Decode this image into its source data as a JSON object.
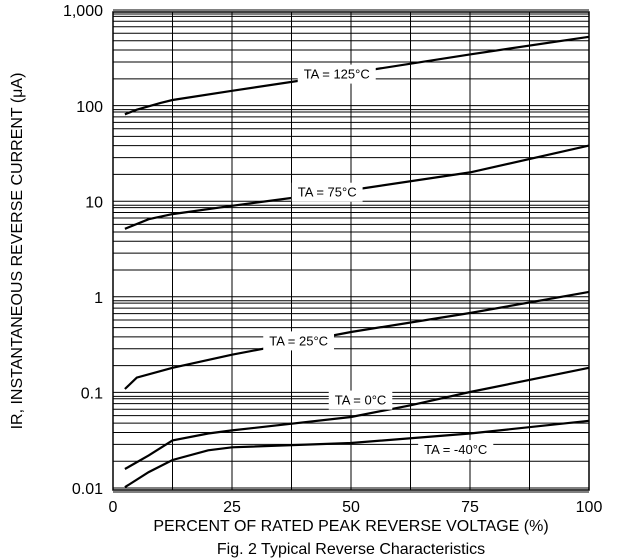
{
  "chart_data": {
    "type": "line",
    "caption": "Fig. 2  Typical Reverse Characteristics",
    "xlabel": "PERCENT OF RATED PEAK REVERSE VOLTAGE (%)",
    "ylabel": "IR, INSTANTANEOUS REVERSE CURRENT (μA)",
    "xlim": [
      0,
      100
    ],
    "xticks": [
      0,
      25,
      50,
      75,
      100
    ],
    "ylim": [
      0.01,
      1000
    ],
    "ylog": true,
    "yticks": [
      {
        "value": 0.01,
        "label": "0.01"
      },
      {
        "value": 0.1,
        "label": "0.1"
      },
      1,
      10,
      100,
      {
        "value": 1000,
        "label": "1,000"
      }
    ],
    "grid": true,
    "series": [
      {
        "name": "TA = 125°C",
        "color": "#000000",
        "x": [
          2.5,
          5,
          10,
          12.5,
          25,
          50,
          75,
          100
        ],
        "values": [
          85,
          95,
          112,
          120,
          150,
          230,
          360,
          550
        ]
      },
      {
        "name": "TA = 75°C",
        "color": "#000000",
        "x": [
          2.5,
          7.5,
          12.5,
          25,
          50,
          75,
          100
        ],
        "values": [
          5.4,
          6.8,
          7.7,
          9.4,
          13.7,
          21,
          40
        ]
      },
      {
        "name": "TA = 25°C",
        "color": "#000000",
        "x": [
          2.5,
          5,
          12.5,
          25,
          50,
          75,
          100
        ],
        "values": [
          0.114,
          0.15,
          0.19,
          0.26,
          0.45,
          0.71,
          1.18
        ]
      },
      {
        "name": "TA = 0°C",
        "color": "#000000",
        "x": [
          2.5,
          7.5,
          12.5,
          20,
          25,
          50,
          62.5,
          75,
          100
        ],
        "values": [
          0.0166,
          0.023,
          0.033,
          0.039,
          0.042,
          0.058,
          0.077,
          0.106,
          0.19
        ]
      },
      {
        "name": "TA = -40°C",
        "color": "#000000",
        "x": [
          2.5,
          7.5,
          12.5,
          20,
          25,
          50,
          75,
          100
        ],
        "values": [
          0.0107,
          0.0154,
          0.0206,
          0.026,
          0.028,
          0.031,
          0.039,
          0.053
        ]
      }
    ]
  }
}
